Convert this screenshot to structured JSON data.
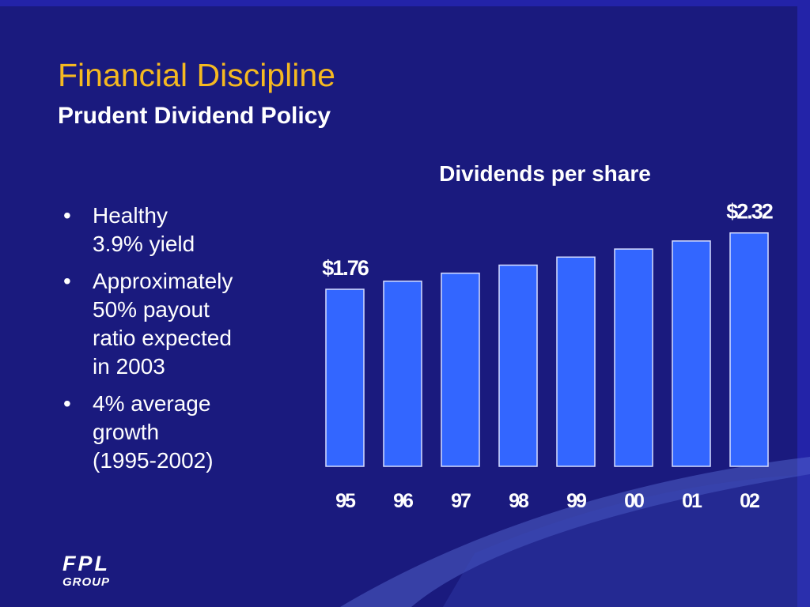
{
  "slide": {
    "title": "Financial Discipline",
    "subtitle": "Prudent Dividend Policy",
    "bullet_marker": "•",
    "bullets": [
      "Healthy\n3.9% yield",
      "Approximately\n50% payout\nratio expected\nin 2003",
      "4% average\ngrowth\n(1995-2002)"
    ],
    "logo": {
      "line1": "FPL",
      "line2": "GROUP"
    }
  },
  "colors": {
    "background": "#1a1a7e",
    "title": "#f5b921",
    "text": "#ffffff",
    "bar_fill": "#3366ff",
    "bar_outline": "#d6ddff"
  },
  "chart_data": {
    "type": "bar",
    "title": "Dividends per share",
    "categories": [
      "95",
      "96",
      "97",
      "98",
      "99",
      "00",
      "01",
      "02"
    ],
    "values": [
      1.76,
      1.84,
      1.92,
      2.0,
      2.08,
      2.16,
      2.24,
      2.32
    ],
    "data_labels": [
      {
        "index": 0,
        "text": "$1.76"
      },
      {
        "index": 7,
        "text": "$2.32"
      }
    ],
    "xlabel": "",
    "ylabel": "",
    "grid": false,
    "legend": "none"
  }
}
